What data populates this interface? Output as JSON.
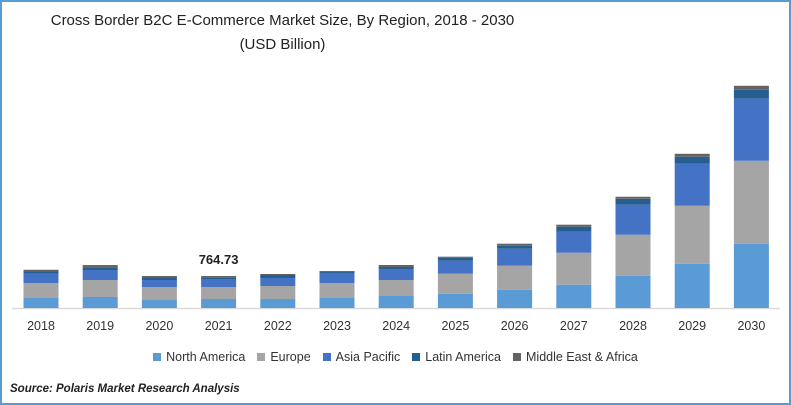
{
  "chart_data": {
    "type": "bar",
    "stacked": true,
    "title": "Cross Border B2C E-Commerce Market Size, By Region, 2018 - 2030",
    "subtitle": "(USD Billion)",
    "xlabel": "",
    "ylabel": "",
    "ylim": [
      0,
      5500
    ],
    "grid": false,
    "legend_position": "bottom",
    "categories": [
      "2018",
      "2019",
      "2020",
      "2021",
      "2022",
      "2023",
      "2024",
      "2025",
      "2026",
      "2027",
      "2028",
      "2029",
      "2030"
    ],
    "series": [
      {
        "name": "North America",
        "color": "#5b9bd5",
        "values": [
          239,
          263,
          191,
          215,
          215,
          239,
          287,
          342,
          438,
          557,
          772,
          1059,
          1537
        ]
      },
      {
        "name": "Europe",
        "color": "#a5a5a5",
        "values": [
          358,
          406,
          311,
          287,
          311,
          358,
          382,
          478,
          574,
          765,
          980,
          1386,
          1984
        ]
      },
      {
        "name": "Asia Pacific",
        "color": "#4472c4",
        "values": [
          222,
          239,
          167,
          191,
          191,
          223,
          263,
          311,
          406,
          502,
          717,
          1004,
          1482
        ]
      },
      {
        "name": "Latin America",
        "color": "#255e91",
        "values": [
          55,
          64,
          48,
          41,
          72,
          40,
          48,
          72,
          72,
          120,
          143,
          167,
          215
        ]
      },
      {
        "name": "Middle East & Africa",
        "color": "#636363",
        "values": [
          40,
          55,
          48,
          31,
          24,
          24,
          48,
          24,
          48,
          48,
          48,
          72,
          96
        ]
      }
    ],
    "annotations": [
      {
        "category": "2021",
        "text": "764.73"
      }
    ]
  },
  "source": "Source: Polaris  Market Research Analysis"
}
